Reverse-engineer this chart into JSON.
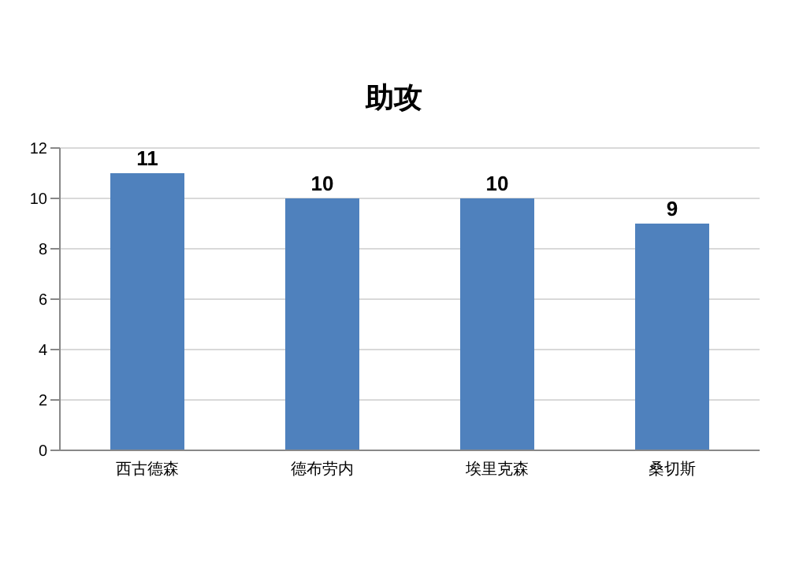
{
  "chart_data": {
    "type": "bar",
    "title": "助攻",
    "categories": [
      "西古德森",
      "德布劳内",
      "埃里克森",
      "桑切斯"
    ],
    "values": [
      11,
      10,
      10,
      9
    ],
    "color": "#4f81bd",
    "ylim": [
      0,
      12
    ],
    "yticks": [
      0,
      2,
      4,
      6,
      8,
      10,
      12
    ],
    "grid": "y",
    "data_labels": true
  }
}
